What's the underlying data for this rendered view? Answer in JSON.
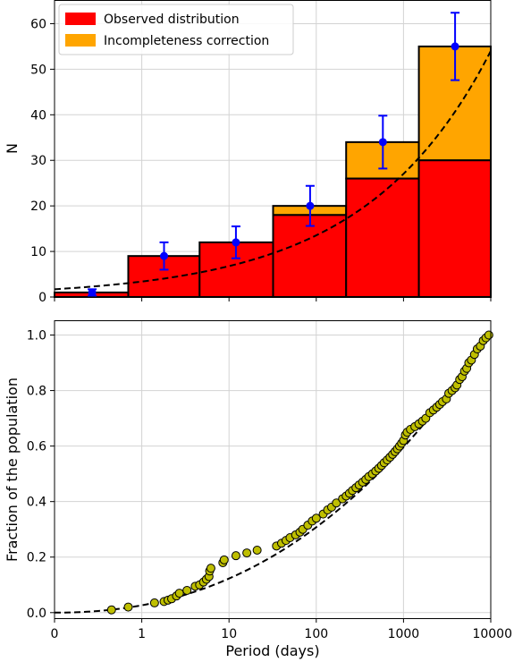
{
  "chart_data": [
    {
      "type": "bar",
      "xlabel": "",
      "ylabel": "N",
      "xscale": "log",
      "xlim": [
        0.1,
        10000
      ],
      "ylim": [
        0,
        65
      ],
      "grid": true,
      "legend_position": "top-left",
      "ytick_labels": [
        "0",
        "10",
        "20",
        "30",
        "40",
        "50",
        "60"
      ],
      "ytick_values": [
        0,
        10,
        20,
        30,
        40,
        50,
        60
      ],
      "xtick_values": [
        0.1,
        1,
        10,
        100,
        1000,
        10000
      ],
      "bin_edges": [
        0.1,
        0.7,
        4.6,
        32,
        220,
        1500,
        10000
      ],
      "series": [
        {
          "name": "Observed distribution",
          "color": "#ff0000",
          "values": [
            1,
            9,
            12,
            18,
            26,
            30
          ]
        },
        {
          "name": "Incompleteness correction",
          "color": "#ffa500",
          "values": [
            0,
            0,
            0,
            2,
            8,
            25
          ]
        }
      ],
      "error_points": {
        "color": "#0000ff",
        "x": [
          0.27,
          1.8,
          12,
          85,
          580,
          3900
        ],
        "y": [
          1,
          9,
          12,
          20,
          34,
          55
        ],
        "err": [
          0.7,
          3,
          3.5,
          4.4,
          5.8,
          7.4
        ]
      },
      "fit_curve": {
        "style": "dashed",
        "color": "#000000",
        "y_at_xmin": 1.7,
        "y_at_xmax": 54
      }
    },
    {
      "type": "scatter",
      "xlabel": "Period (days)",
      "ylabel": "Fraction of the population",
      "xscale": "log",
      "xlim": [
        0.1,
        10000
      ],
      "ylim": [
        -0.02,
        1.05
      ],
      "grid": true,
      "xtick_labels": [
        "0",
        "1",
        "10",
        "100",
        "1000",
        "10000"
      ],
      "xtick_values": [
        0.1,
        1,
        10,
        100,
        1000,
        10000
      ],
      "ytick_labels": [
        "0.0",
        "0.2",
        "0.4",
        "0.6",
        "0.8",
        "1.0"
      ],
      "ytick_values": [
        0,
        0.2,
        0.4,
        0.6,
        0.8,
        1.0
      ],
      "marker_color": "#bfbf00",
      "points": [
        [
          0.45,
          0.01
        ],
        [
          0.7,
          0.02
        ],
        [
          1.4,
          0.035
        ],
        [
          1.8,
          0.04
        ],
        [
          2.0,
          0.045
        ],
        [
          2.2,
          0.05
        ],
        [
          2.5,
          0.06
        ],
        [
          2.7,
          0.07
        ],
        [
          3.3,
          0.08
        ],
        [
          4.1,
          0.095
        ],
        [
          4.6,
          0.1
        ],
        [
          5.1,
          0.11
        ],
        [
          5.5,
          0.12
        ],
        [
          5.9,
          0.13
        ],
        [
          6.0,
          0.15
        ],
        [
          6.2,
          0.16
        ],
        [
          8.5,
          0.18
        ],
        [
          8.8,
          0.19
        ],
        [
          12,
          0.205
        ],
        [
          16,
          0.215
        ],
        [
          21,
          0.225
        ],
        [
          35,
          0.24
        ],
        [
          40,
          0.25
        ],
        [
          45,
          0.26
        ],
        [
          50,
          0.27
        ],
        [
          58,
          0.28
        ],
        [
          65,
          0.29
        ],
        [
          70,
          0.3
        ],
        [
          80,
          0.315
        ],
        [
          90,
          0.33
        ],
        [
          100,
          0.34
        ],
        [
          120,
          0.355
        ],
        [
          135,
          0.37
        ],
        [
          150,
          0.38
        ],
        [
          170,
          0.395
        ],
        [
          200,
          0.41
        ],
        [
          220,
          0.42
        ],
        [
          240,
          0.43
        ],
        [
          260,
          0.44
        ],
        [
          285,
          0.45
        ],
        [
          310,
          0.46
        ],
        [
          340,
          0.47
        ],
        [
          370,
          0.48
        ],
        [
          400,
          0.49
        ],
        [
          440,
          0.5
        ],
        [
          480,
          0.51
        ],
        [
          520,
          0.52
        ],
        [
          560,
          0.53
        ],
        [
          600,
          0.54
        ],
        [
          650,
          0.55
        ],
        [
          700,
          0.56
        ],
        [
          750,
          0.57
        ],
        [
          800,
          0.58
        ],
        [
          850,
          0.59
        ],
        [
          900,
          0.6
        ],
        [
          950,
          0.61
        ],
        [
          1000,
          0.62
        ],
        [
          1050,
          0.64
        ],
        [
          1100,
          0.65
        ],
        [
          1200,
          0.66
        ],
        [
          1350,
          0.67
        ],
        [
          1500,
          0.68
        ],
        [
          1650,
          0.69
        ],
        [
          1800,
          0.7
        ],
        [
          2000,
          0.72
        ],
        [
          2200,
          0.73
        ],
        [
          2400,
          0.74
        ],
        [
          2600,
          0.75
        ],
        [
          2800,
          0.76
        ],
        [
          3100,
          0.77
        ],
        [
          3300,
          0.79
        ],
        [
          3600,
          0.8
        ],
        [
          3900,
          0.81
        ],
        [
          4100,
          0.82
        ],
        [
          4400,
          0.84
        ],
        [
          4700,
          0.85
        ],
        [
          5000,
          0.87
        ],
        [
          5300,
          0.88
        ],
        [
          5600,
          0.9
        ],
        [
          6000,
          0.91
        ],
        [
          6500,
          0.93
        ],
        [
          7000,
          0.95
        ],
        [
          7600,
          0.96
        ],
        [
          8200,
          0.98
        ],
        [
          8800,
          0.99
        ],
        [
          9500,
          1.0
        ]
      ],
      "fit_curve": {
        "style": "dashed",
        "color": "#000000",
        "y_at_xmin": 0.0,
        "y_at_xmax": 1.0
      }
    }
  ]
}
